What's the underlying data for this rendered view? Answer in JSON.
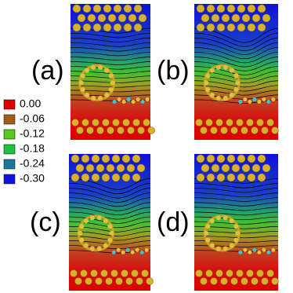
{
  "panels": [
    {
      "label": "(a)"
    },
    {
      "label": "(b)"
    },
    {
      "label": "(c)"
    },
    {
      "label": "(d)"
    }
  ],
  "legend": [
    {
      "label": "0.00",
      "color": "#e00000"
    },
    {
      "label": "-0.06",
      "color": "#a0601a"
    },
    {
      "label": "-0.12",
      "color": "#58c81c"
    },
    {
      "label": "-0.18",
      "color": "#20c040"
    },
    {
      "label": "-0.24",
      "color": "#1a7898"
    },
    {
      "label": "-0.30",
      "color": "#1010e0"
    }
  ]
}
